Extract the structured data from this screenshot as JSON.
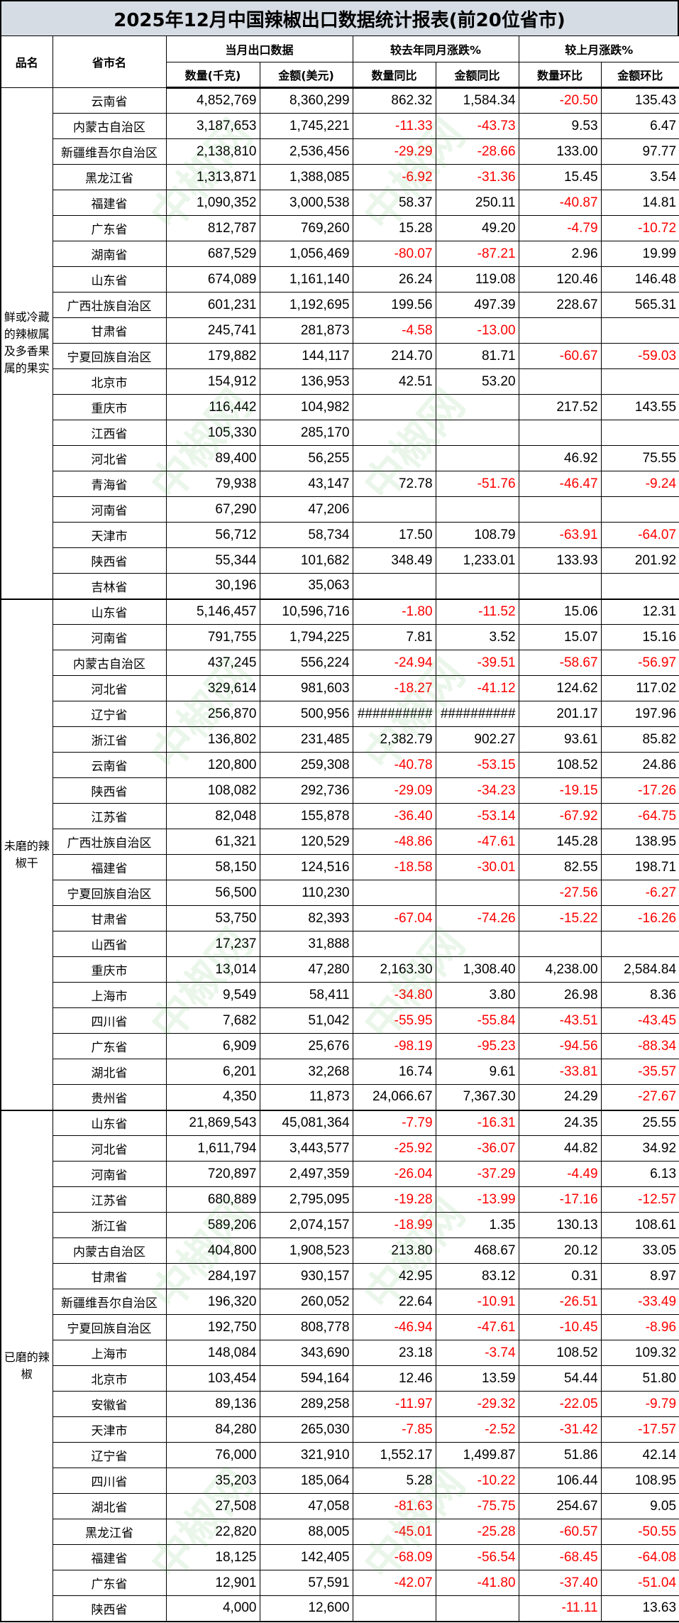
{
  "title": "2025年12月中国辣椒出口数据统计报表(前20位省市)",
  "header": {
    "product": "品名",
    "province": "省市名",
    "group_current": "当月出口数据",
    "group_yoy": "较去年同月涨跌%",
    "group_mom": "较上月涨跌%",
    "qty": "数量(千克)",
    "amount": "金额(美元)",
    "qty_yoy": "数量同比",
    "amount_yoy": "金额同比",
    "qty_mom": "数量环比",
    "amount_mom": "金额环比"
  },
  "watermark": "中椒网 www.e658.cn",
  "sections": [
    {
      "product": "鲜或冷藏的辣椒属及多香果属的果实",
      "rows": [
        [
          "云南省",
          "4,852,769",
          "8,360,299",
          "862.32",
          "1,584.34",
          "-20.50",
          "135.43"
        ],
        [
          "内蒙古自治区",
          "3,187,653",
          "1,745,221",
          "-11.33",
          "-43.73",
          "9.53",
          "6.47"
        ],
        [
          "新疆维吾尔自治区",
          "2,138,810",
          "2,536,456",
          "-29.29",
          "-28.66",
          "133.00",
          "97.77"
        ],
        [
          "黑龙江省",
          "1,313,871",
          "1,388,085",
          "-6.92",
          "-31.36",
          "15.45",
          "3.54"
        ],
        [
          "福建省",
          "1,090,352",
          "3,000,538",
          "58.37",
          "250.11",
          "-40.87",
          "14.81"
        ],
        [
          "广东省",
          "812,787",
          "769,260",
          "15.28",
          "49.20",
          "-4.79",
          "-10.72"
        ],
        [
          "湖南省",
          "687,529",
          "1,056,469",
          "-80.07",
          "-87.21",
          "2.96",
          "19.99"
        ],
        [
          "山东省",
          "674,089",
          "1,161,140",
          "26.24",
          "119.08",
          "120.46",
          "146.48"
        ],
        [
          "广西壮族自治区",
          "601,231",
          "1,192,695",
          "199.56",
          "497.39",
          "228.67",
          "565.31"
        ],
        [
          "甘肃省",
          "245,741",
          "281,873",
          "-4.58",
          "-13.00",
          "",
          ""
        ],
        [
          "宁夏回族自治区",
          "179,882",
          "144,117",
          "214.70",
          "81.71",
          "-60.67",
          "-59.03"
        ],
        [
          "北京市",
          "154,912",
          "136,953",
          "42.51",
          "53.20",
          "",
          ""
        ],
        [
          "重庆市",
          "116,442",
          "104,982",
          "",
          "",
          "217.52",
          "143.55"
        ],
        [
          "江西省",
          "105,330",
          "285,170",
          "",
          "",
          "",
          ""
        ],
        [
          "河北省",
          "89,400",
          "56,255",
          "",
          "",
          "46.92",
          "75.55"
        ],
        [
          "青海省",
          "79,938",
          "43,147",
          "72.78",
          "-51.76",
          "-46.47",
          "-9.24"
        ],
        [
          "河南省",
          "67,290",
          "47,206",
          "",
          "",
          "",
          ""
        ],
        [
          "天津市",
          "56,712",
          "58,734",
          "17.50",
          "108.79",
          "-63.91",
          "-64.07"
        ],
        [
          "陕西省",
          "55,344",
          "101,682",
          "348.49",
          "1,233.01",
          "133.93",
          "201.92"
        ],
        [
          "吉林省",
          "30,196",
          "35,063",
          "",
          "",
          "",
          ""
        ]
      ]
    },
    {
      "product": "未磨的辣椒干",
      "rows": [
        [
          "山东省",
          "5,146,457",
          "10,596,716",
          "-1.80",
          "-11.52",
          "15.06",
          "12.31"
        ],
        [
          "河南省",
          "791,755",
          "1,794,225",
          "7.81",
          "3.52",
          "15.07",
          "15.16"
        ],
        [
          "内蒙古自治区",
          "437,245",
          "556,224",
          "-24.94",
          "-39.51",
          "-58.67",
          "-56.97"
        ],
        [
          "河北省",
          "329,614",
          "981,603",
          "-18.27",
          "-41.12",
          "124.62",
          "117.02"
        ],
        [
          "辽宁省",
          "256,870",
          "500,956",
          "##########",
          "##########",
          "201.17",
          "197.96"
        ],
        [
          "浙江省",
          "136,802",
          "231,485",
          "2,382.79",
          "902.27",
          "93.61",
          "85.82"
        ],
        [
          "云南省",
          "120,800",
          "259,308",
          "-40.78",
          "-53.15",
          "108.52",
          "24.86"
        ],
        [
          "陕西省",
          "108,082",
          "292,736",
          "-29.09",
          "-34.23",
          "-19.15",
          "-17.26"
        ],
        [
          "江苏省",
          "82,048",
          "155,878",
          "-36.40",
          "-53.14",
          "-67.92",
          "-64.75"
        ],
        [
          "广西壮族自治区",
          "61,321",
          "120,529",
          "-48.86",
          "-47.61",
          "145.28",
          "138.95"
        ],
        [
          "福建省",
          "58,150",
          "124,516",
          "-18.58",
          "-30.01",
          "82.55",
          "198.71"
        ],
        [
          "宁夏回族自治区",
          "56,500",
          "110,230",
          "",
          "",
          "-27.56",
          "-6.27"
        ],
        [
          "甘肃省",
          "53,750",
          "82,393",
          "-67.04",
          "-74.26",
          "-15.22",
          "-16.26"
        ],
        [
          "山西省",
          "17,237",
          "31,888",
          "",
          "",
          "",
          ""
        ],
        [
          "重庆市",
          "13,014",
          "47,280",
          "2,163.30",
          "1,308.40",
          "4,238.00",
          "2,584.84"
        ],
        [
          "上海市",
          "9,549",
          "58,411",
          "-34.80",
          "3.80",
          "26.98",
          "8.36"
        ],
        [
          "四川省",
          "7,682",
          "51,042",
          "-55.95",
          "-55.84",
          "-43.51",
          "-43.45"
        ],
        [
          "广东省",
          "6,909",
          "25,676",
          "-98.19",
          "-95.23",
          "-94.56",
          "-88.34"
        ],
        [
          "湖北省",
          "6,201",
          "32,268",
          "16.74",
          "9.61",
          "-33.81",
          "-35.57"
        ],
        [
          "贵州省",
          "4,350",
          "11,873",
          "24,066.67",
          "7,367.30",
          "24.29",
          "-27.67"
        ]
      ]
    },
    {
      "product": "已磨的辣椒",
      "rows": [
        [
          "山东省",
          "21,869,543",
          "45,081,364",
          "-7.79",
          "-16.31",
          "24.35",
          "25.55"
        ],
        [
          "河北省",
          "1,611,794",
          "3,443,577",
          "-25.92",
          "-36.07",
          "44.82",
          "34.92"
        ],
        [
          "河南省",
          "720,897",
          "2,497,359",
          "-26.04",
          "-37.29",
          "-4.49",
          "6.13"
        ],
        [
          "江苏省",
          "680,889",
          "2,795,095",
          "-19.28",
          "-13.99",
          "-17.16",
          "-12.57"
        ],
        [
          "浙江省",
          "589,206",
          "2,074,157",
          "-18.99",
          "1.35",
          "130.13",
          "108.61"
        ],
        [
          "内蒙古自治区",
          "404,800",
          "1,908,523",
          "213.80",
          "468.67",
          "20.12",
          "33.05"
        ],
        [
          "甘肃省",
          "284,197",
          "930,157",
          "42.95",
          "83.12",
          "0.31",
          "8.97"
        ],
        [
          "新疆维吾尔自治区",
          "196,320",
          "260,052",
          "22.64",
          "-10.91",
          "-26.51",
          "-33.49"
        ],
        [
          "宁夏回族自治区",
          "192,750",
          "808,778",
          "-46.94",
          "-47.61",
          "-10.45",
          "-8.96"
        ],
        [
          "上海市",
          "148,084",
          "343,690",
          "23.18",
          "-3.74",
          "108.52",
          "109.32"
        ],
        [
          "北京市",
          "103,454",
          "594,164",
          "12.46",
          "13.59",
          "54.44",
          "51.80"
        ],
        [
          "安徽省",
          "89,136",
          "289,258",
          "-11.97",
          "-29.32",
          "-22.05",
          "-9.79"
        ],
        [
          "天津市",
          "84,280",
          "265,030",
          "-7.85",
          "-2.52",
          "-31.42",
          "-17.57"
        ],
        [
          "辽宁省",
          "76,000",
          "321,910",
          "1,552.17",
          "1,499.87",
          "51.86",
          "42.14"
        ],
        [
          "四川省",
          "35,203",
          "185,064",
          "5.28",
          "-10.22",
          "106.44",
          "108.95"
        ],
        [
          "湖北省",
          "27,508",
          "47,058",
          "-81.63",
          "-75.75",
          "254.67",
          "9.05"
        ],
        [
          "黑龙江省",
          "22,820",
          "88,005",
          "-45.01",
          "-25.28",
          "-60.57",
          "-50.55"
        ],
        [
          "福建省",
          "18,125",
          "142,405",
          "-68.09",
          "-56.54",
          "-68.45",
          "-64.08"
        ],
        [
          "广东省",
          "12,901",
          "57,591",
          "-42.07",
          "-41.80",
          "-37.40",
          "-51.04"
        ],
        [
          "陕西省",
          "4,000",
          "12,600",
          "",
          "",
          "-11.11",
          "13.63"
        ]
      ]
    }
  ],
  "colors": {
    "title_bg": "#d6dce4",
    "negative": "#ff0000",
    "watermark_green": "#3caa3c",
    "watermark_red": "#e04040"
  }
}
